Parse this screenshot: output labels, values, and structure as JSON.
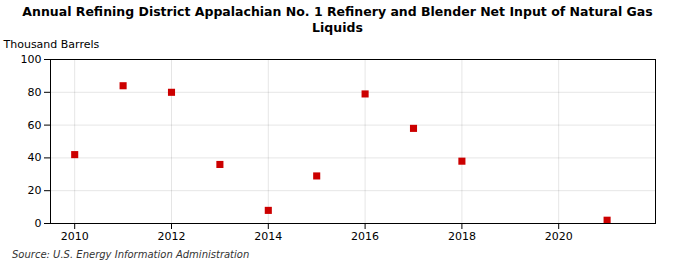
{
  "chart_data": {
    "type": "scatter",
    "title": "Annual Refining District Appalachian No. 1 Refinery and Blender Net Input of Natural Gas\nLiquids",
    "ylabel": "Thousand Barrels",
    "source": "Source: U.S. Energy Information Administration",
    "x": [
      2010,
      2011,
      2012,
      2013,
      2014,
      2015,
      2016,
      2017,
      2018,
      2021
    ],
    "values": [
      42,
      84,
      80,
      36,
      8,
      29,
      79,
      58,
      38,
      2
    ],
    "xlim": [
      2009.5,
      2022
    ],
    "ylim": [
      0,
      100
    ],
    "xticks": [
      2010,
      2012,
      2014,
      2016,
      2018,
      2020
    ],
    "yticks": [
      0,
      20,
      40,
      60,
      80,
      100
    ],
    "color": "#cc0000",
    "marker": "square",
    "grid": true
  }
}
